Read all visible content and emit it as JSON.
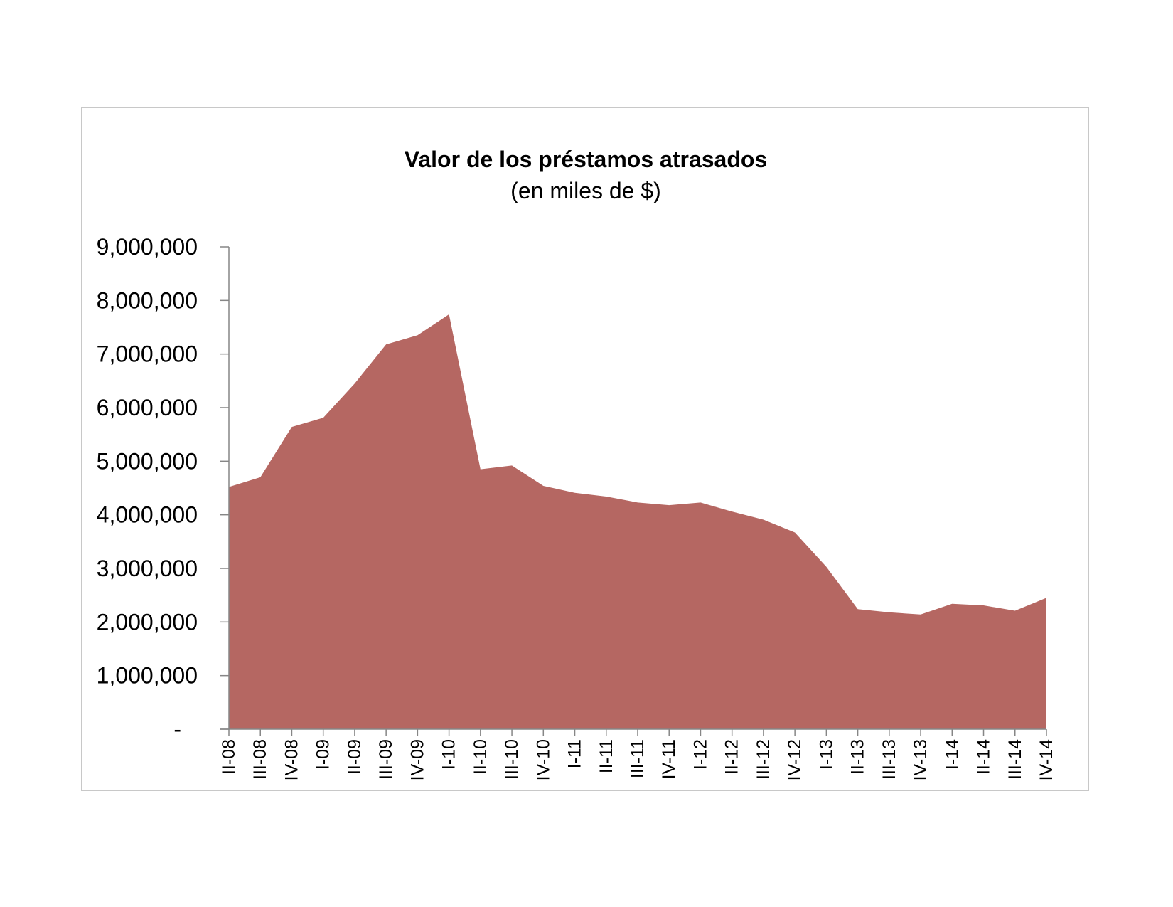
{
  "chart_data": {
    "type": "area",
    "title": "Valor de los préstamos atrasados",
    "subtitle": "(en miles de $)",
    "xlabel": "",
    "ylabel": "",
    "ylim": [
      0,
      9000000
    ],
    "yticks": [
      0,
      1000000,
      2000000,
      3000000,
      4000000,
      5000000,
      6000000,
      7000000,
      8000000,
      9000000
    ],
    "ytick_labels": [
      "-",
      "1,000,000",
      "2,000,000",
      "3,000,000",
      "4,000,000",
      "5,000,000",
      "6,000,000",
      "7,000,000",
      "8,000,000",
      "9,000,000"
    ],
    "grid": false,
    "legend": "none",
    "color": "#b56762",
    "categories": [
      "II-08",
      "III-08",
      "IV-08",
      "I-09",
      "II-09",
      "III-09",
      "IV-09",
      "I-10",
      "II-10",
      "III-10",
      "IV-10",
      "I-11",
      "II-11",
      "III-11",
      "IV-11",
      "I-12",
      "II-12",
      "III-12",
      "IV-12",
      "I-13",
      "II-13",
      "III-13",
      "IV-13",
      "I-14",
      "II-14",
      "III-14",
      "IV-14"
    ],
    "values": [
      4520000,
      4700000,
      5640000,
      5810000,
      6450000,
      7180000,
      7350000,
      7740000,
      4850000,
      4920000,
      4540000,
      4410000,
      4340000,
      4230000,
      4180000,
      4230000,
      4060000,
      3910000,
      3670000,
      3030000,
      2240000,
      2180000,
      2140000,
      2340000,
      2310000,
      2210000,
      2450000
    ]
  }
}
